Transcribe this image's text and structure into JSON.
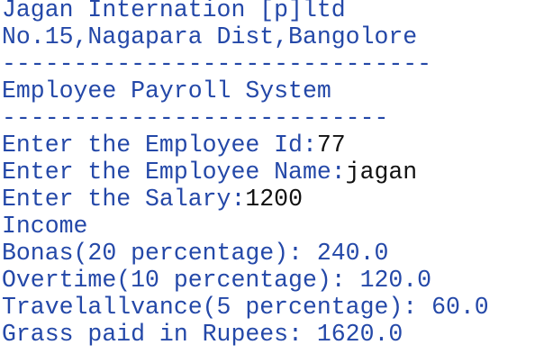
{
  "console": {
    "header": [
      "Jagan Internation [p]ltd",
      "No.15,Nagapara Dist,Bangolore",
      "------------------------------",
      "Employee Payroll System",
      "---------------------------"
    ],
    "inputs": [
      {
        "prompt": "Enter the Employee Id:",
        "input": "77"
      },
      {
        "prompt": "Enter the Employee Name:",
        "input": "jagan"
      },
      {
        "prompt": "Enter the Salary:",
        "input": "1200"
      }
    ],
    "output": [
      "Income",
      "Bonas(20 percentage): 240.0",
      "Overtime(10 percentage): 120.0",
      "Travelallvance(5 percentage): 60.0",
      "Grass paid in Rupees: 1620.0"
    ]
  }
}
